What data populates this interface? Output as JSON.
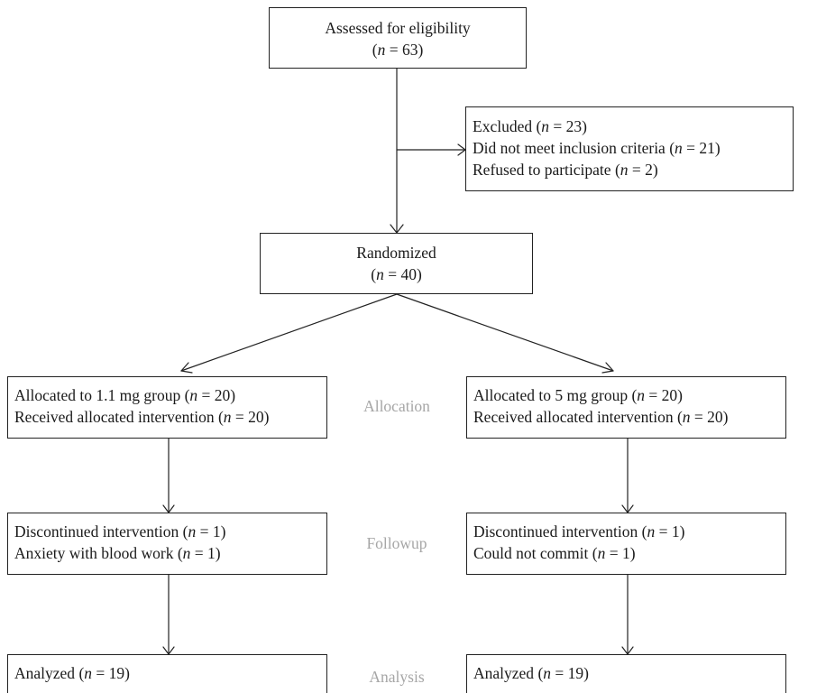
{
  "assessed": {
    "title": "Assessed for eligibility",
    "n": "63"
  },
  "excluded": {
    "title": "Excluded",
    "n": "23",
    "reasons": [
      {
        "label": "Did not meet inclusion criteria",
        "n": "21"
      },
      {
        "label": "Refused to participate",
        "n": "2"
      }
    ]
  },
  "randomized": {
    "title": "Randomized",
    "n": "40"
  },
  "stages": {
    "allocation": "Allocation",
    "followup": "Followup",
    "analysis": "Analysis"
  },
  "left_arm": {
    "allocated": {
      "label": "Allocated to 1.1 mg group",
      "n": "20"
    },
    "received": {
      "label": "Received allocated intervention",
      "n": "20"
    },
    "discontinued": {
      "label": "Discontinued intervention",
      "n": "1"
    },
    "discontinued_reason": {
      "label": "Anxiety with blood work",
      "n": "1"
    },
    "analyzed": {
      "label": "Analyzed",
      "n": "19"
    }
  },
  "right_arm": {
    "allocated": {
      "label": "Allocated to 5 mg group",
      "n": "20"
    },
    "received": {
      "label": "Received allocated intervention",
      "n": "20"
    },
    "discontinued": {
      "label": "Discontinued intervention",
      "n": "1"
    },
    "discontinued_reason": {
      "label": "Could not commit",
      "n": "1"
    },
    "analyzed": {
      "label": "Analyzed",
      "n": "19"
    }
  },
  "symbols": {
    "variable": "n",
    "equals": " = "
  }
}
